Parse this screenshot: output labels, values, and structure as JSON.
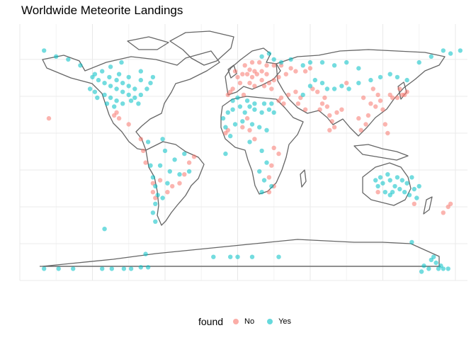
{
  "title": "Worldwide Meteorite Landings",
  "legend": {
    "title": "found",
    "entries": [
      {
        "label": "No",
        "color": "#F8766D"
      },
      {
        "label": "Yes",
        "color": "#00BFC4"
      }
    ]
  },
  "chart_data": {
    "type": "scatter",
    "title": "Worldwide Meteorite Landings",
    "xlabel": "",
    "ylabel": "",
    "grid": true,
    "legend_position": "bottom",
    "xlim": [
      -180,
      190
    ],
    "ylim": [
      -90,
      84
    ],
    "series": [
      {
        "name": "No",
        "color": "#F8766D",
        "points": [
          [
            -2,
            52
          ],
          [
            0,
            48
          ],
          [
            4,
            50
          ],
          [
            8,
            50
          ],
          [
            12,
            48
          ],
          [
            16,
            50
          ],
          [
            20,
            52
          ],
          [
            24,
            50
          ],
          [
            10,
            53
          ],
          [
            14,
            52
          ],
          [
            -4,
            40
          ],
          [
            -6,
            38
          ],
          [
            2,
            44
          ],
          [
            10,
            44
          ],
          [
            14,
            42
          ],
          [
            22,
            42
          ],
          [
            26,
            44
          ],
          [
            30,
            46
          ],
          [
            34,
            48
          ],
          [
            40,
            50
          ],
          [
            44,
            54
          ],
          [
            48,
            52
          ],
          [
            36,
            56
          ],
          [
            30,
            56
          ],
          [
            24,
            56
          ],
          [
            18,
            58
          ],
          [
            12,
            58
          ],
          [
            6,
            56
          ],
          [
            56,
            52
          ],
          [
            60,
            54
          ],
          [
            70,
            30
          ],
          [
            74,
            28
          ],
          [
            76,
            22
          ],
          [
            78,
            18
          ],
          [
            80,
            14
          ],
          [
            76,
            12
          ],
          [
            82,
            24
          ],
          [
            86,
            26
          ],
          [
            72,
            34
          ],
          [
            68,
            26
          ],
          [
            104,
            34
          ],
          [
            110,
            30
          ],
          [
            114,
            28
          ],
          [
            118,
            32
          ],
          [
            120,
            26
          ],
          [
            116,
            36
          ],
          [
            108,
            22
          ],
          [
            100,
            20
          ],
          [
            106,
            16
          ],
          [
            112,
            40
          ],
          [
            126,
            36
          ],
          [
            128,
            34
          ],
          [
            132,
            34
          ],
          [
            136,
            36
          ],
          [
            138,
            36
          ],
          [
            140,
            38
          ],
          [
            134,
            40
          ],
          [
            122,
            16
          ],
          [
            124,
            10
          ],
          [
            102,
            12
          ],
          [
            8,
            20
          ],
          [
            10,
            12
          ],
          [
            4,
            14
          ],
          [
            14,
            6
          ],
          [
            -8,
            12
          ],
          [
            -10,
            10
          ],
          [
            30,
            0
          ],
          [
            34,
            -4
          ],
          [
            28,
            -12
          ],
          [
            26,
            -20
          ],
          [
            26,
            -30
          ],
          [
            30,
            -26
          ],
          [
            -64,
            -22
          ],
          [
            -58,
            -30
          ],
          [
            -48,
            -24
          ],
          [
            -44,
            -18
          ],
          [
            -54,
            -26
          ],
          [
            -70,
            -30
          ],
          [
            -70,
            -24
          ],
          [
            -68,
            -34
          ],
          [
            -80,
            6
          ],
          [
            -78,
            -2
          ],
          [
            -76,
            -10
          ],
          [
            -40,
            -10
          ],
          [
            -36,
            -6
          ],
          [
            174,
            -40
          ],
          [
            176,
            -38
          ],
          [
            170,
            -44
          ],
          [
            146,
            -38
          ],
          [
            116,
            -30
          ],
          [
            -100,
            24
          ],
          [
            -98,
            20
          ],
          [
            -102,
            22
          ],
          [
            -90,
            16
          ],
          [
            -156,
            20
          ],
          [
            50,
            30
          ],
          [
            52,
            34
          ],
          [
            56,
            26
          ],
          [
            48,
            38
          ],
          [
            42,
            36
          ],
          [
            38,
            30
          ],
          [
            34,
            32
          ],
          [
            20,
            46
          ],
          [
            28,
            40
          ],
          [
            -8,
            36
          ],
          [
            5,
            36
          ],
          [
            36,
            34
          ],
          [
            62,
            40
          ],
          [
            66,
            38
          ],
          [
            90,
            44
          ]
        ]
      },
      {
        "name": "Yes",
        "color": "#00BFC4",
        "points": [
          [
            -120,
            48
          ],
          [
            -115,
            46
          ],
          [
            -110,
            44
          ],
          [
            -105,
            42
          ],
          [
            -100,
            40
          ],
          [
            -95,
            38
          ],
          [
            -90,
            36
          ],
          [
            -85,
            34
          ],
          [
            -80,
            36
          ],
          [
            -75,
            40
          ],
          [
            -100,
            46
          ],
          [
            -95,
            44
          ],
          [
            -90,
            42
          ],
          [
            -85,
            40
          ],
          [
            -110,
            36
          ],
          [
            -105,
            34
          ],
          [
            -100,
            32
          ],
          [
            -95,
            30
          ],
          [
            -118,
            38
          ],
          [
            -122,
            40
          ],
          [
            -112,
            52
          ],
          [
            -105,
            55
          ],
          [
            -98,
            50
          ],
          [
            -80,
            46
          ],
          [
            -72,
            44
          ],
          [
            -88,
            32
          ],
          [
            -82,
            30
          ],
          [
            -102,
            28
          ],
          [
            -108,
            30
          ],
          [
            -116,
            34
          ],
          [
            -130,
            56
          ],
          [
            -150,
            62
          ],
          [
            -160,
            66
          ],
          [
            -140,
            60
          ],
          [
            -96,
            58
          ],
          [
            -80,
            52
          ],
          [
            -70,
            48
          ],
          [
            -90,
            48
          ],
          [
            -106,
            48
          ],
          [
            -118,
            50
          ],
          [
            2,
            28
          ],
          [
            -4,
            26
          ],
          [
            -8,
            24
          ],
          [
            -12,
            20
          ],
          [
            6,
            24
          ],
          [
            10,
            28
          ],
          [
            14,
            26
          ],
          [
            20,
            24
          ],
          [
            26,
            26
          ],
          [
            30,
            24
          ],
          [
            -4,
            32
          ],
          [
            0,
            34
          ],
          [
            8,
            32
          ],
          [
            14,
            30
          ],
          [
            22,
            30
          ],
          [
            28,
            30
          ],
          [
            -10,
            14
          ],
          [
            -2,
            16
          ],
          [
            4,
            18
          ],
          [
            12,
            16
          ],
          [
            18,
            14
          ],
          [
            24,
            12
          ],
          [
            -6,
            8
          ],
          [
            10,
            4
          ],
          [
            20,
            -2
          ],
          [
            24,
            -10
          ],
          [
            18,
            -16
          ],
          [
            22,
            -22
          ],
          [
            28,
            -26
          ],
          [
            20,
            -30
          ],
          [
            -70,
            -20
          ],
          [
            -68,
            -26
          ],
          [
            -66,
            -32
          ],
          [
            -68,
            -38
          ],
          [
            -70,
            -44
          ],
          [
            -68,
            -50
          ],
          [
            -62,
            -34
          ],
          [
            -58,
            -24
          ],
          [
            -48,
            -18
          ],
          [
            -44,
            -4
          ],
          [
            -62,
            6
          ],
          [
            -74,
            4
          ],
          [
            -72,
            -12
          ],
          [
            -56,
            -16
          ],
          [
            -64,
            -12
          ],
          [
            -40,
            -16
          ],
          [
            -52,
            -8
          ],
          [
            -60,
            -2
          ],
          [
            116,
            -26
          ],
          [
            120,
            -24
          ],
          [
            126,
            -22
          ],
          [
            130,
            -26
          ],
          [
            134,
            -28
          ],
          [
            138,
            -30
          ],
          [
            142,
            -32
          ],
          [
            146,
            -28
          ],
          [
            122,
            -30
          ],
          [
            128,
            -30
          ],
          [
            118,
            -20
          ],
          [
            124,
            -18
          ],
          [
            132,
            -20
          ],
          [
            140,
            -24
          ],
          [
            144,
            -20
          ],
          [
            150,
            -26
          ],
          [
            136,
            -22
          ],
          [
            126,
            -32
          ],
          [
            114,
            -22
          ],
          [
            148,
            -34
          ],
          [
            54,
            36
          ],
          [
            60,
            42
          ],
          [
            64,
            46
          ],
          [
            70,
            44
          ],
          [
            74,
            40
          ],
          [
            80,
            40
          ],
          [
            86,
            42
          ],
          [
            92,
            40
          ],
          [
            100,
            44
          ],
          [
            110,
            46
          ],
          [
            118,
            48
          ],
          [
            126,
            50
          ],
          [
            132,
            48
          ],
          [
            140,
            46
          ],
          [
            150,
            58
          ],
          [
            160,
            62
          ],
          [
            170,
            66
          ],
          [
            176,
            64
          ],
          [
            184,
            66
          ],
          [
            100,
            54
          ],
          [
            20,
            62
          ],
          [
            26,
            64
          ],
          [
            30,
            60
          ],
          [
            36,
            58
          ],
          [
            44,
            60
          ],
          [
            54,
            56
          ],
          [
            60,
            58
          ],
          [
            70,
            58
          ],
          [
            80,
            56
          ],
          [
            90,
            58
          ],
          [
            -160,
            -82
          ],
          [
            -148,
            -82
          ],
          [
            -136,
            -82
          ],
          [
            -112,
            -82
          ],
          [
            -104,
            -82
          ],
          [
            -94,
            -82
          ],
          [
            -88,
            -82
          ],
          [
            -80,
            -81
          ],
          [
            -74,
            -81
          ],
          [
            -110,
            -55
          ],
          [
            -76,
            -72
          ],
          [
            -20,
            -74
          ],
          [
            -6,
            -74
          ],
          [
            0,
            -74
          ],
          [
            12,
            -74
          ],
          [
            34,
            -74
          ],
          [
            154,
            -80
          ],
          [
            158,
            -82
          ],
          [
            160,
            -76
          ],
          [
            162,
            -74
          ],
          [
            164,
            -78
          ],
          [
            166,
            -82
          ],
          [
            168,
            -80
          ],
          [
            170,
            -82
          ],
          [
            174,
            -82
          ],
          [
            152,
            -84
          ],
          [
            144,
            -64
          ],
          [
            -10,
            -4
          ]
        ]
      }
    ]
  }
}
